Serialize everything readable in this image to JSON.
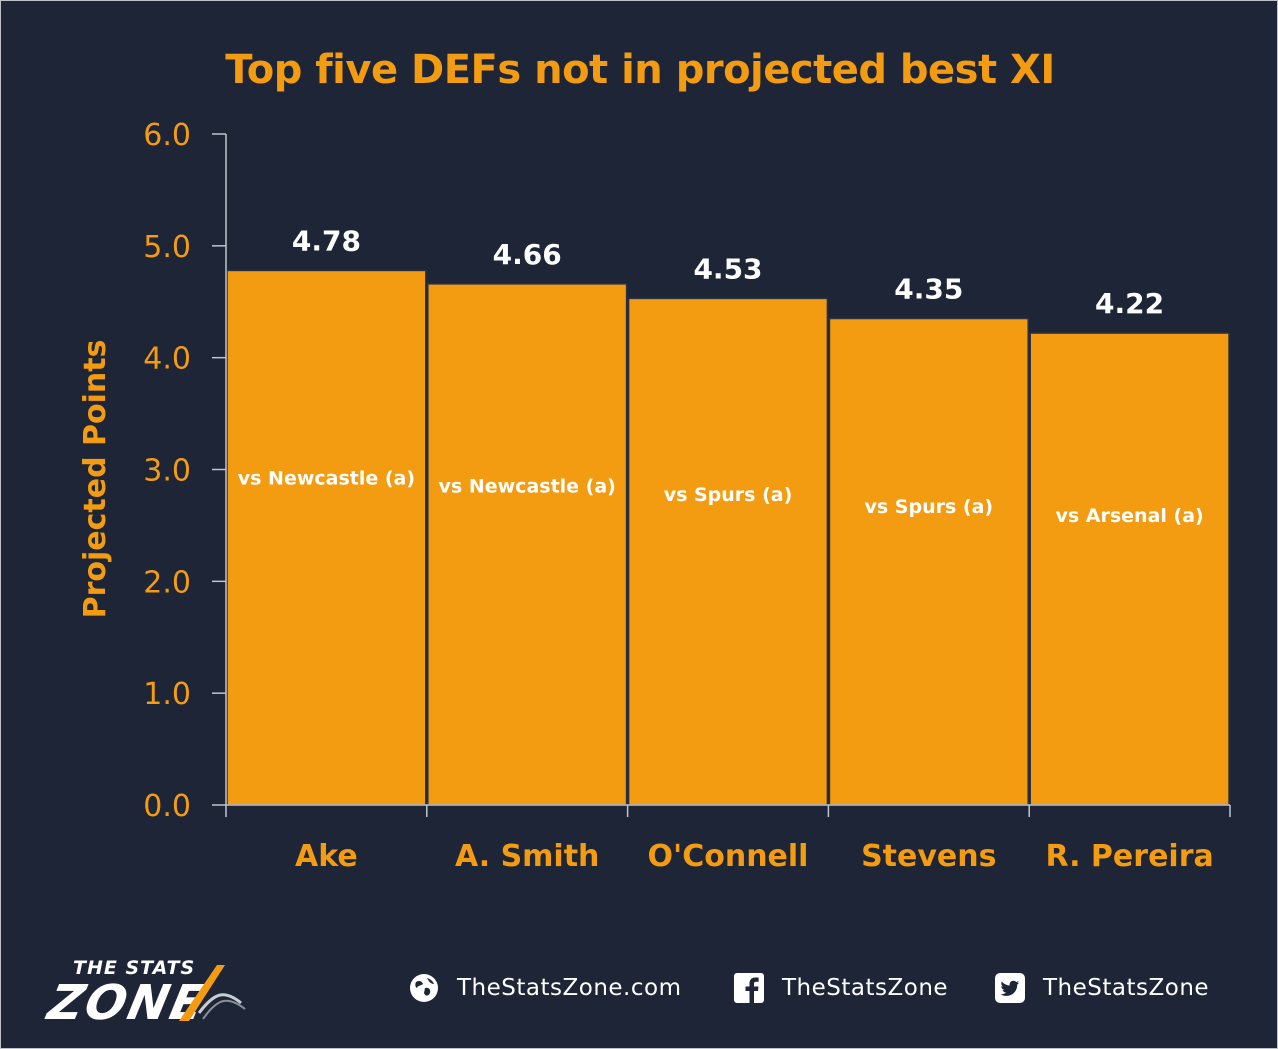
{
  "chart_data": {
    "type": "bar",
    "title": "Top five DEFs not in projected best XI",
    "xlabel": "",
    "ylabel": "Projected Points",
    "ylim": [
      0,
      6
    ],
    "yticks": [
      "0.0",
      "1.0",
      "2.0",
      "3.0",
      "4.0",
      "5.0",
      "6.0"
    ],
    "categories": [
      "Ake",
      "A. Smith",
      "O'Connell",
      "Stevens",
      "R. Pereira"
    ],
    "values": [
      4.78,
      4.66,
      4.53,
      4.35,
      4.22
    ],
    "value_labels": [
      "4.78",
      "4.66",
      "4.53",
      "4.35",
      "4.22"
    ],
    "annotations": [
      "vs Newcastle (a)",
      "vs Newcastle (a)",
      "vs Spurs (a)",
      "vs Spurs (a)",
      "vs Arsenal (a)"
    ],
    "grid": false,
    "legend": "none",
    "colors": {
      "bar": "#f39c12",
      "background": "#1d2536",
      "text_accent": "#f39c12",
      "value_text": "#ffffff"
    }
  },
  "footer": {
    "logo_line1": "THE STATS",
    "logo_line2": "ZONE",
    "website": "TheStatsZone.com",
    "facebook": "TheStatsZone",
    "twitter": "TheStatsZone",
    "icons": [
      "globe-icon",
      "facebook-icon",
      "twitter-icon"
    ]
  }
}
